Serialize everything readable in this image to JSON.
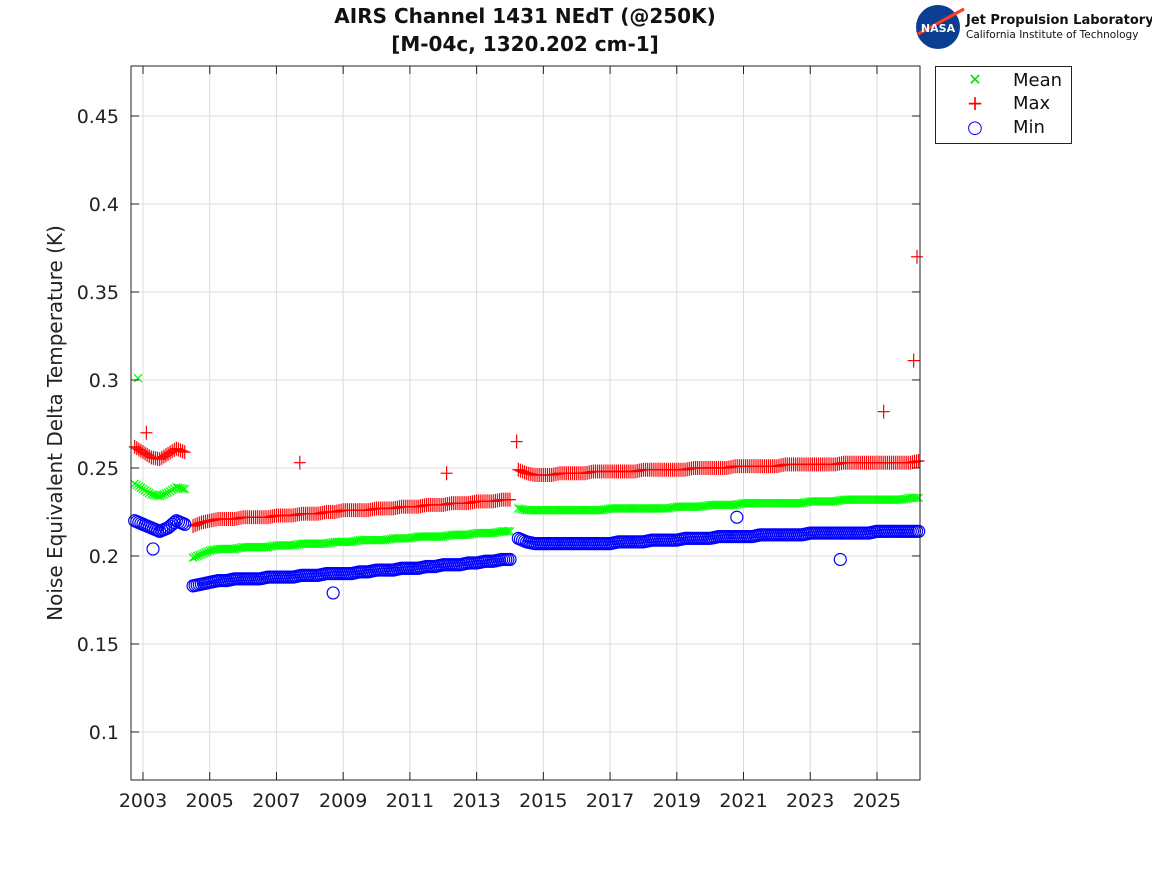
{
  "logo": {
    "name": "NASA",
    "org": "Jet Propulsion Laboratory",
    "sub": "California Institute of Technology"
  },
  "chart_data": {
    "type": "scatter",
    "title": "AIRS Channel 1431 NEdT (@250K)",
    "subtitle": "[M-04c, 1320.202 cm-1]",
    "xlabel": "",
    "ylabel": "Noise Equivalent Delta Temperature (K)",
    "xlim": [
      2002.64,
      2026.29
    ],
    "ylim": [
      0.0727,
      0.4784
    ],
    "xticks": [
      2003,
      2005,
      2007,
      2009,
      2011,
      2013,
      2015,
      2017,
      2019,
      2021,
      2023,
      2025
    ],
    "yticks": [
      0.1,
      0.15,
      0.2,
      0.25,
      0.3,
      0.35,
      0.4,
      0.45
    ],
    "grid": true,
    "legend_position": "outside-top-right",
    "x": [
      2002.75,
      2003,
      2003.25,
      2003.5,
      2003.75,
      2004,
      2004.25,
      2004.5,
      2004.75,
      2005,
      2005.25,
      2005.5,
      2005.75,
      2006,
      2006.25,
      2006.5,
      2006.75,
      2007,
      2007.25,
      2007.5,
      2007.75,
      2008,
      2008.25,
      2008.5,
      2008.75,
      2009,
      2009.25,
      2009.5,
      2009.75,
      2010,
      2010.25,
      2010.5,
      2010.75,
      2011,
      2011.25,
      2011.5,
      2011.75,
      2012,
      2012.25,
      2012.5,
      2012.75,
      2013,
      2013.25,
      2013.5,
      2013.75,
      2014,
      2014.25,
      2014.5,
      2014.75,
      2015,
      2015.25,
      2015.5,
      2015.75,
      2016,
      2016.25,
      2016.5,
      2016.75,
      2017,
      2017.25,
      2017.5,
      2017.75,
      2018,
      2018.25,
      2018.5,
      2018.75,
      2019,
      2019.25,
      2019.5,
      2019.75,
      2020,
      2020.25,
      2020.5,
      2020.75,
      2021,
      2021.25,
      2021.5,
      2021.75,
      2022,
      2022.25,
      2022.5,
      2022.75,
      2023,
      2023.25,
      2023.5,
      2023.75,
      2024,
      2024.25,
      2024.5,
      2024.75,
      2025,
      2025.25,
      2025.5,
      2025.75,
      2026,
      2026.25
    ],
    "series": [
      {
        "name": "Mean",
        "marker": "x",
        "color": "#00ff00",
        "values": [
          0.241,
          0.238,
          0.235,
          0.234,
          0.236,
          0.239,
          0.238,
          0.199,
          0.201,
          0.203,
          0.204,
          0.204,
          0.204,
          0.205,
          0.205,
          0.205,
          0.205,
          0.206,
          0.206,
          0.206,
          0.207,
          0.207,
          0.207,
          0.207,
          0.208,
          0.208,
          0.208,
          0.209,
          0.209,
          0.209,
          0.209,
          0.21,
          0.21,
          0.21,
          0.211,
          0.211,
          0.211,
          0.211,
          0.212,
          0.212,
          0.212,
          0.213,
          0.213,
          0.213,
          0.214,
          0.214,
          0.227,
          0.226,
          0.226,
          0.226,
          0.226,
          0.226,
          0.226,
          0.226,
          0.226,
          0.226,
          0.226,
          0.227,
          0.227,
          0.227,
          0.227,
          0.227,
          0.227,
          0.227,
          0.227,
          0.228,
          0.228,
          0.228,
          0.228,
          0.229,
          0.229,
          0.229,
          0.229,
          0.23,
          0.23,
          0.23,
          0.23,
          0.23,
          0.23,
          0.23,
          0.23,
          0.231,
          0.231,
          0.231,
          0.231,
          0.232,
          0.232,
          0.232,
          0.232,
          0.232,
          0.232,
          0.232,
          0.232,
          0.233,
          0.233
        ],
        "outliers": [
          [
            2002.85,
            0.301
          ]
        ]
      },
      {
        "name": "Max",
        "marker": "+",
        "color": "#ff0000",
        "values": [
          0.262,
          0.259,
          0.256,
          0.255,
          0.258,
          0.261,
          0.259,
          0.217,
          0.219,
          0.22,
          0.221,
          0.221,
          0.221,
          0.222,
          0.222,
          0.222,
          0.222,
          0.223,
          0.223,
          0.223,
          0.224,
          0.224,
          0.224,
          0.225,
          0.225,
          0.226,
          0.226,
          0.226,
          0.226,
          0.227,
          0.227,
          0.227,
          0.228,
          0.228,
          0.228,
          0.229,
          0.229,
          0.229,
          0.23,
          0.23,
          0.23,
          0.231,
          0.231,
          0.231,
          0.232,
          0.232,
          0.249,
          0.247,
          0.246,
          0.246,
          0.246,
          0.247,
          0.247,
          0.247,
          0.247,
          0.248,
          0.248,
          0.248,
          0.248,
          0.248,
          0.248,
          0.249,
          0.249,
          0.249,
          0.249,
          0.249,
          0.249,
          0.25,
          0.25,
          0.25,
          0.25,
          0.25,
          0.251,
          0.251,
          0.251,
          0.251,
          0.251,
          0.251,
          0.252,
          0.252,
          0.252,
          0.252,
          0.252,
          0.252,
          0.252,
          0.253,
          0.253,
          0.253,
          0.253,
          0.253,
          0.253,
          0.253,
          0.253,
          0.253,
          0.254
        ],
        "outliers": [
          [
            2003.1,
            0.27
          ],
          [
            2007.7,
            0.253
          ],
          [
            2012.1,
            0.247
          ],
          [
            2014.2,
            0.265
          ],
          [
            2025.2,
            0.282
          ],
          [
            2026.1,
            0.311
          ],
          [
            2026.2,
            0.37
          ]
        ]
      },
      {
        "name": "Min",
        "marker": "o",
        "color": "#0000ff",
        "values": [
          0.22,
          0.218,
          0.216,
          0.214,
          0.216,
          0.22,
          0.218,
          0.183,
          0.184,
          0.185,
          0.186,
          0.186,
          0.187,
          0.187,
          0.187,
          0.187,
          0.188,
          0.188,
          0.188,
          0.188,
          0.189,
          0.189,
          0.189,
          0.19,
          0.19,
          0.19,
          0.19,
          0.191,
          0.191,
          0.192,
          0.192,
          0.192,
          0.193,
          0.193,
          0.193,
          0.194,
          0.194,
          0.195,
          0.195,
          0.195,
          0.196,
          0.196,
          0.197,
          0.197,
          0.198,
          0.198,
          0.21,
          0.208,
          0.207,
          0.207,
          0.207,
          0.207,
          0.207,
          0.207,
          0.207,
          0.207,
          0.207,
          0.207,
          0.208,
          0.208,
          0.208,
          0.208,
          0.209,
          0.209,
          0.209,
          0.209,
          0.21,
          0.21,
          0.21,
          0.21,
          0.211,
          0.211,
          0.211,
          0.211,
          0.211,
          0.212,
          0.212,
          0.212,
          0.212,
          0.212,
          0.212,
          0.213,
          0.213,
          0.213,
          0.213,
          0.213,
          0.213,
          0.213,
          0.213,
          0.214,
          0.214,
          0.214,
          0.214,
          0.214,
          0.214
        ],
        "outliers": [
          [
            2003.3,
            0.204
          ],
          [
            2008.7,
            0.179
          ],
          [
            2020.8,
            0.222
          ],
          [
            2023.9,
            0.198
          ]
        ]
      }
    ]
  }
}
